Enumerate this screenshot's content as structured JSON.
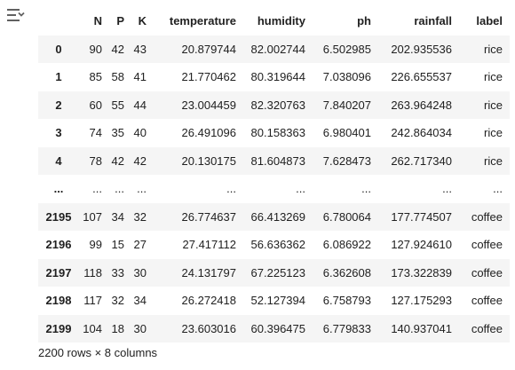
{
  "columns": [
    "N",
    "P",
    "K",
    "temperature",
    "humidity",
    "ph",
    "rainfall",
    "label"
  ],
  "rows": [
    {
      "index": "0",
      "cells": [
        "90",
        "42",
        "43",
        "20.879744",
        "82.002744",
        "6.502985",
        "202.935536",
        "rice"
      ]
    },
    {
      "index": "1",
      "cells": [
        "85",
        "58",
        "41",
        "21.770462",
        "80.319644",
        "7.038096",
        "226.655537",
        "rice"
      ]
    },
    {
      "index": "2",
      "cells": [
        "60",
        "55",
        "44",
        "23.004459",
        "82.320763",
        "7.840207",
        "263.964248",
        "rice"
      ]
    },
    {
      "index": "3",
      "cells": [
        "74",
        "35",
        "40",
        "26.491096",
        "80.158363",
        "6.980401",
        "242.864034",
        "rice"
      ]
    },
    {
      "index": "4",
      "cells": [
        "78",
        "42",
        "42",
        "20.130175",
        "81.604873",
        "7.628473",
        "262.717340",
        "rice"
      ]
    },
    {
      "index": "...",
      "cells": [
        "...",
        "...",
        "...",
        "...",
        "...",
        "...",
        "...",
        "..."
      ]
    },
    {
      "index": "2195",
      "cells": [
        "107",
        "34",
        "32",
        "26.774637",
        "66.413269",
        "6.780064",
        "177.774507",
        "coffee"
      ]
    },
    {
      "index": "2196",
      "cells": [
        "99",
        "15",
        "27",
        "27.417112",
        "56.636362",
        "6.086922",
        "127.924610",
        "coffee"
      ]
    },
    {
      "index": "2197",
      "cells": [
        "118",
        "33",
        "30",
        "24.131797",
        "67.225123",
        "6.362608",
        "173.322839",
        "coffee"
      ]
    },
    {
      "index": "2198",
      "cells": [
        "117",
        "32",
        "34",
        "26.272418",
        "52.127394",
        "6.758793",
        "127.175293",
        "coffee"
      ]
    },
    {
      "index": "2199",
      "cells": [
        "104",
        "18",
        "30",
        "23.603016",
        "60.396475",
        "6.779833",
        "140.937041",
        "coffee"
      ]
    }
  ],
  "footer": "2200 rows × 8 columns",
  "icons": {
    "output_action": "output-expand-icon"
  },
  "colors": {
    "row_stripe": "#f5f5f5",
    "text": "#212121",
    "icon": "#616161"
  }
}
